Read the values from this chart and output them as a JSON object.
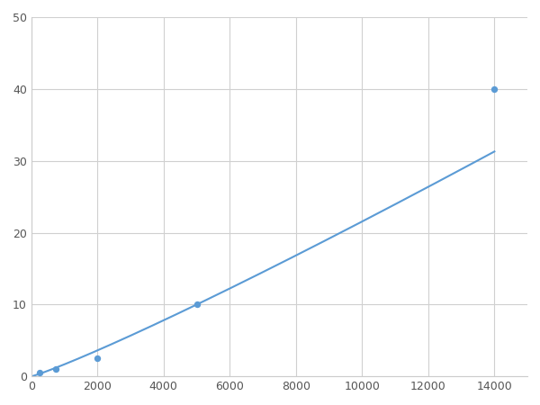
{
  "x_points": [
    250,
    750,
    2000,
    5000,
    14000
  ],
  "y_points": [
    0.5,
    1.0,
    2.5,
    10.0,
    40.0
  ],
  "line_color": "#5b9bd5",
  "marker_color": "#5b9bd5",
  "background_color": "#ffffff",
  "grid_color": "#d0d0d0",
  "xlim": [
    0,
    15000
  ],
  "ylim": [
    0,
    50
  ],
  "xticks": [
    0,
    2000,
    4000,
    6000,
    8000,
    10000,
    12000,
    14000
  ],
  "yticks": [
    0,
    10,
    20,
    30,
    40,
    50
  ],
  "tick_label_color": "#555555",
  "tick_fontsize": 9,
  "figsize": [
    6.0,
    4.5
  ],
  "dpi": 100
}
